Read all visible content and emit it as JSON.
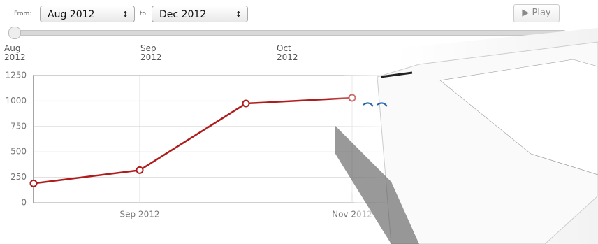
{
  "controls": {
    "from_label": "From:",
    "from_value": "Aug 2012",
    "to_label": "to:",
    "to_value": "Dec 2012",
    "play": "Play",
    "slider_labels": [
      "Aug 2012",
      "Sep 2012",
      "Oct 2012"
    ]
  },
  "chart_data": {
    "type": "line",
    "categories": [
      null,
      "Sep 2012",
      null,
      "Nov 2012"
    ],
    "series": [
      {
        "color": "#b01c1c",
        "values": [
          190,
          320,
          975,
          1030
        ]
      }
    ],
    "ylim": [
      0,
      1250
    ],
    "yticks": [
      0,
      250,
      500,
      750,
      1000,
      1250
    ],
    "grid": true
  }
}
